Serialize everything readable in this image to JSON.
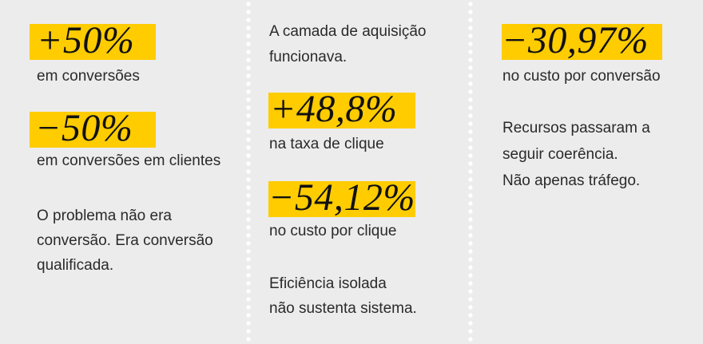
{
  "accent_color": "#ffcc00",
  "columns": [
    {
      "stats": [
        {
          "value": "+50%",
          "label": "em conversões"
        },
        {
          "value": "−50%",
          "label": "em conversões em clientes"
        }
      ],
      "note": [
        "O problema não era",
        "conversão. Era conversão",
        "qualificada."
      ]
    },
    {
      "intro": [
        "A camada de aquisição",
        "funcionava."
      ],
      "stats": [
        {
          "value": "+48,8%",
          "label": "na taxa de clique"
        },
        {
          "value": "−54,12%",
          "label": "no custo por clique"
        }
      ],
      "note": [
        "Eficiência isolada",
        "não sustenta sistema."
      ]
    },
    {
      "stats": [
        {
          "value": "−30,97%",
          "label": "no custo por conversão"
        }
      ],
      "note": [
        "Recursos passaram a",
        "seguir coerência.",
        "Não apenas tráfego."
      ]
    }
  ]
}
